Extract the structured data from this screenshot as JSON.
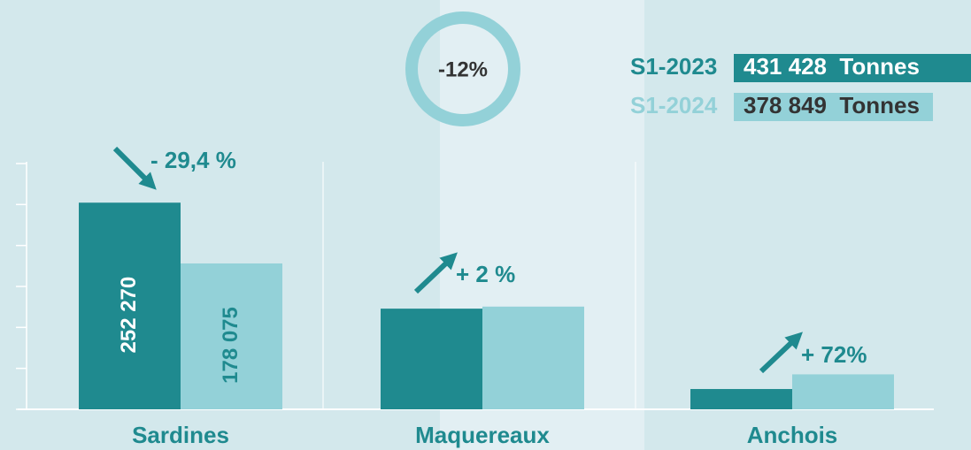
{
  "chart_data": {
    "type": "bar",
    "badge": "-12%",
    "categories": [
      "Sardines",
      "Maquereaux",
      "Anchois"
    ],
    "series": [
      {
        "name": "S1-2023",
        "color": "#1f8a8f",
        "total": "431 428  Tonnes",
        "values": [
          252270,
          122900,
          24800
        ],
        "value_labels": [
          "252 270",
          null,
          null
        ]
      },
      {
        "name": "S1-2024",
        "color": "#93d1d8",
        "total": "378 849  Tonnes",
        "values": [
          178075,
          125400,
          42700
        ],
        "value_labels": [
          "178 075",
          null,
          null
        ]
      }
    ],
    "annotations": [
      "- 29,4 %",
      "+ 2 %",
      "+ 72%"
    ],
    "ylim": [
      0,
      300000
    ],
    "yticks": [
      0,
      50000,
      100000,
      150000,
      200000,
      250000,
      300000
    ]
  }
}
